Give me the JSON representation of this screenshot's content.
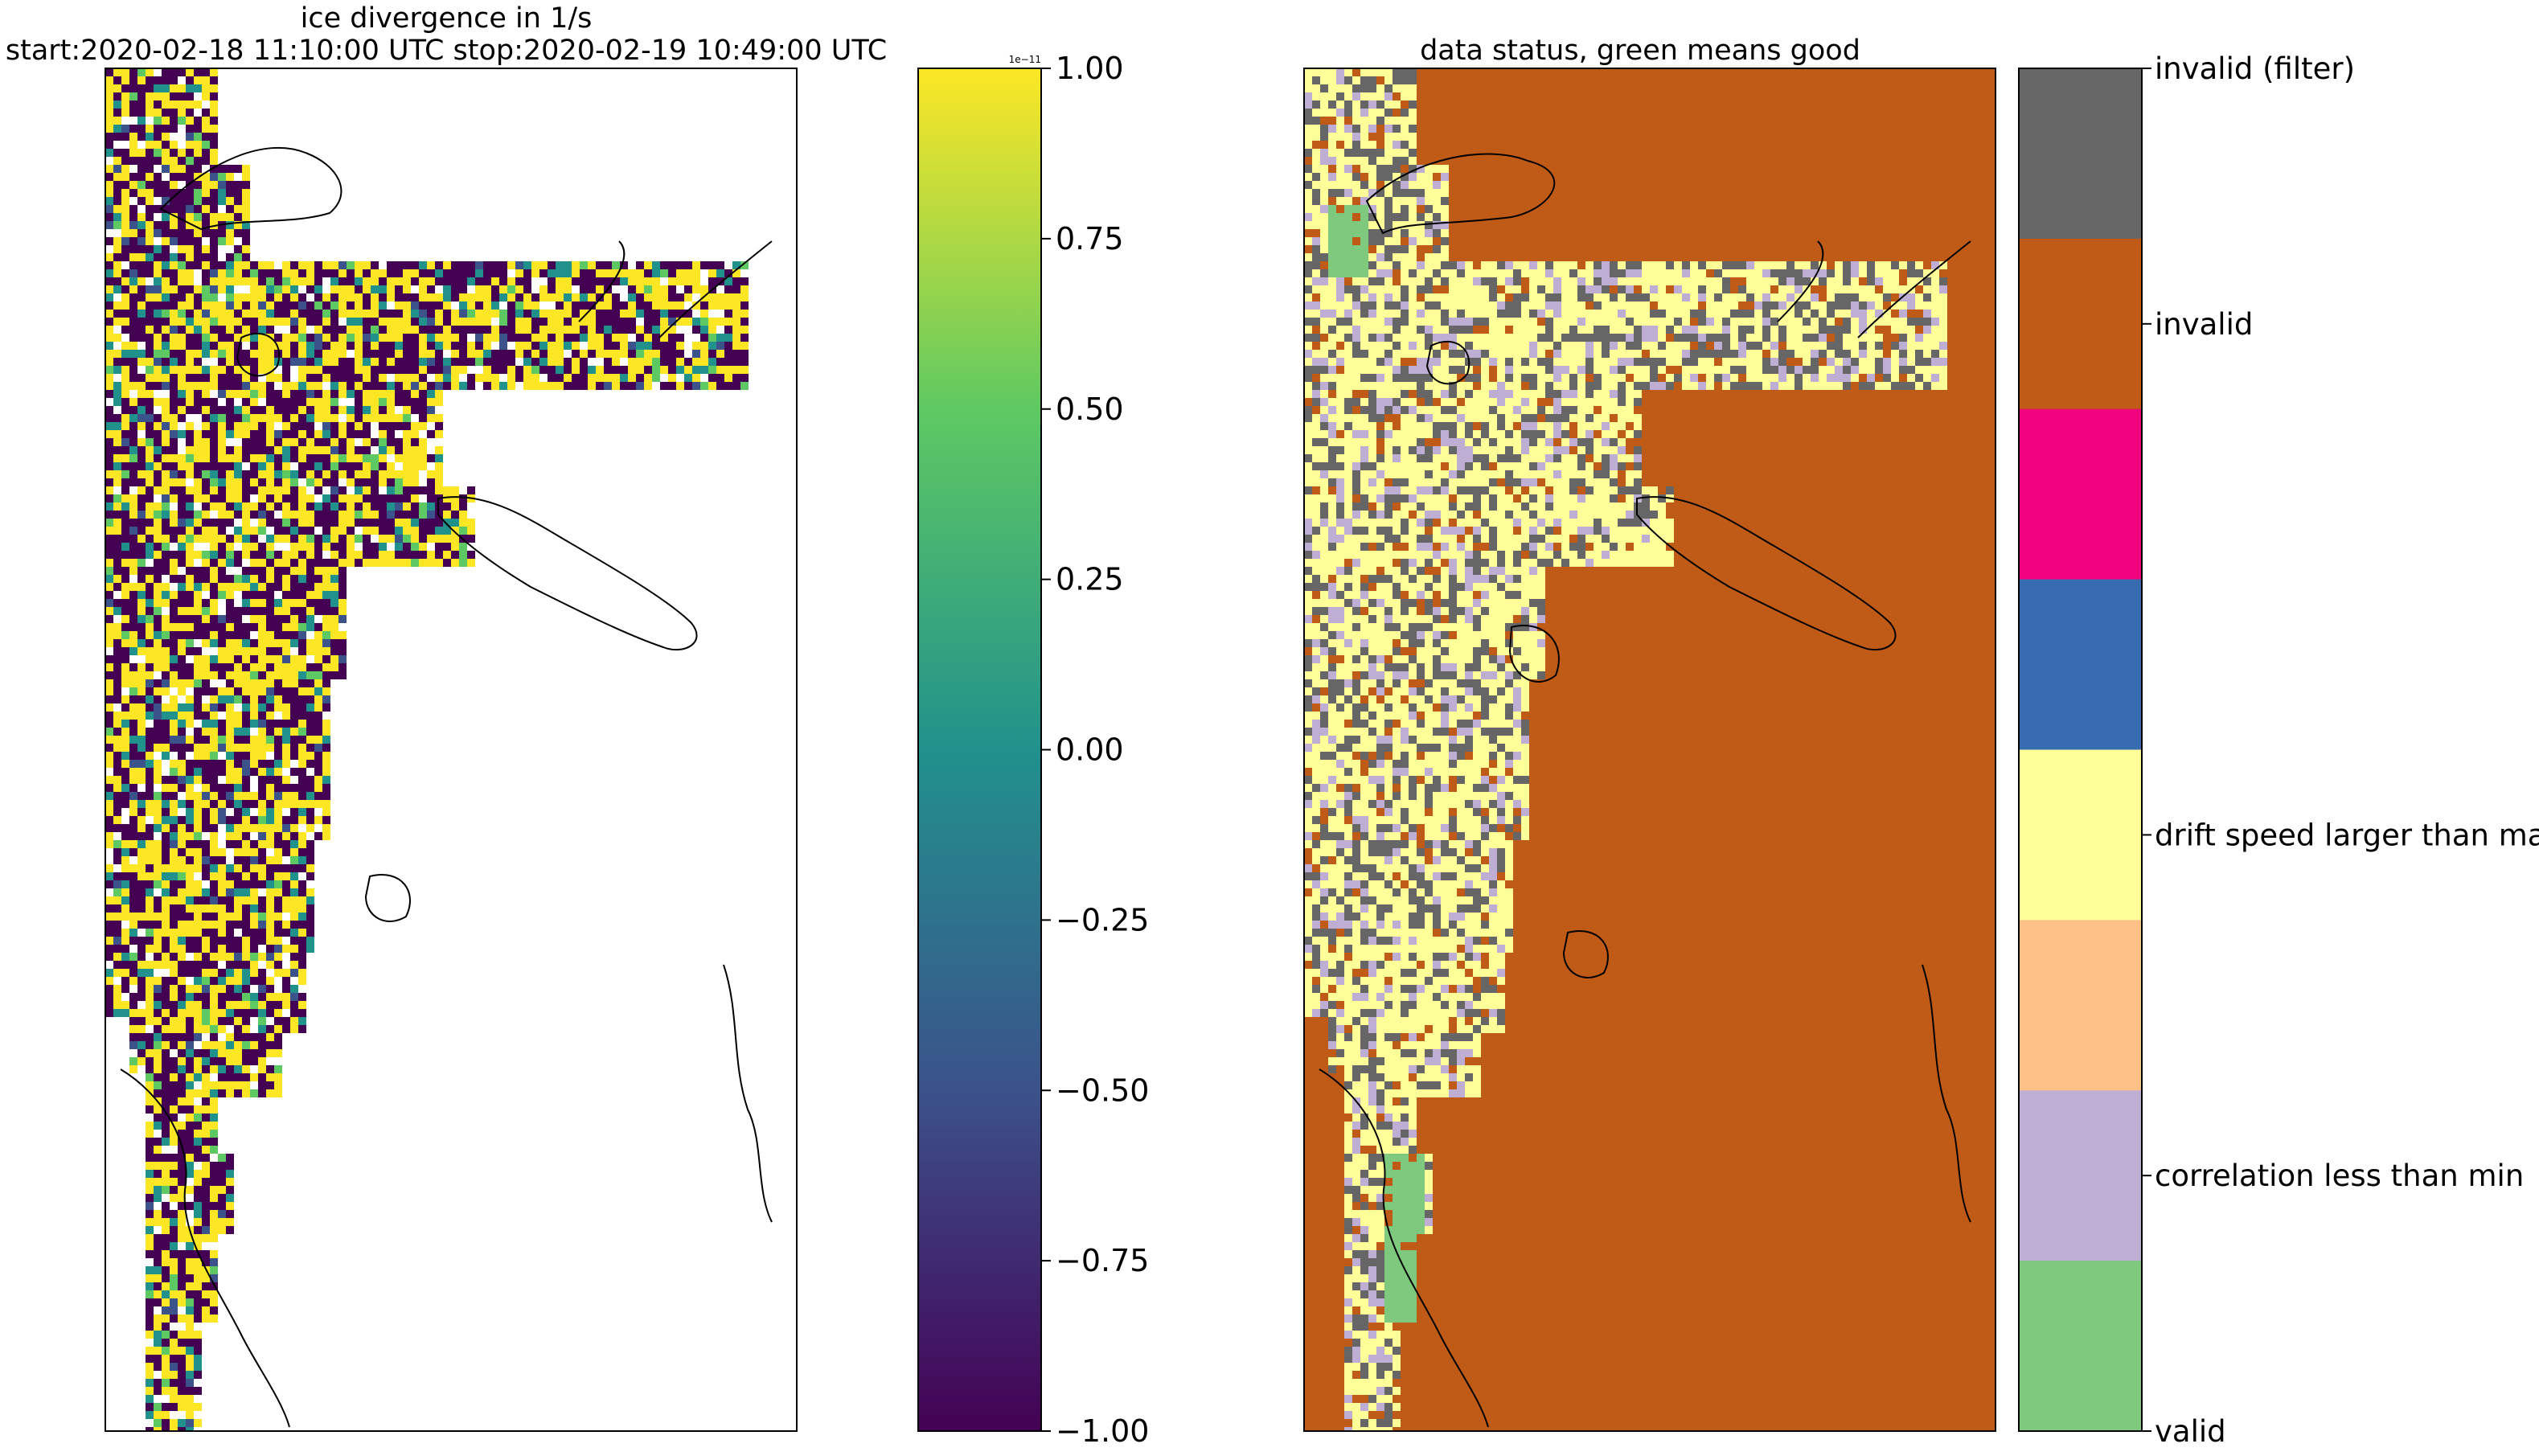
{
  "chart_data": [
    {
      "type": "heatmap",
      "title": "ice divergence in 1/s",
      "subtitle": "start:2020-02-18 11:10:00 UTC stop:2020-02-19 10:49:00 UTC",
      "colormap": "viridis",
      "colorbar": {
        "offset_label": "1e−11",
        "range": [
          -1.0,
          1.0
        ],
        "ticks": [
          1.0,
          0.75,
          0.5,
          0.25,
          0.0,
          -0.25,
          -0.5,
          -0.75,
          -1.0
        ],
        "tick_labels": [
          "1.00",
          "0.75",
          "0.50",
          "0.25",
          "0.00",
          "−0.25",
          "−0.50",
          "−0.75",
          "−1.00"
        ],
        "colors": [
          "#440154",
          "#3b528b",
          "#21918c",
          "#5ec962",
          "#fde725"
        ]
      },
      "grid": false
    },
    {
      "type": "heatmap",
      "title": "data status, green means good",
      "grid": false,
      "categories": [
        {
          "label": "invalid (filter)",
          "color": "#666666"
        },
        {
          "label": "invalid",
          "color": "#bf5b17"
        },
        {
          "label": "",
          "color": "#f0027f"
        },
        {
          "label": "",
          "color": "#386cb0"
        },
        {
          "label": "drift speed larger than max",
          "color": "#ffff99"
        },
        {
          "label": "",
          "color": "#fdc086"
        },
        {
          "label": "correlation less than min",
          "color": "#beaed4"
        },
        {
          "label": "valid",
          "color": "#7fc97f"
        }
      ]
    }
  ]
}
